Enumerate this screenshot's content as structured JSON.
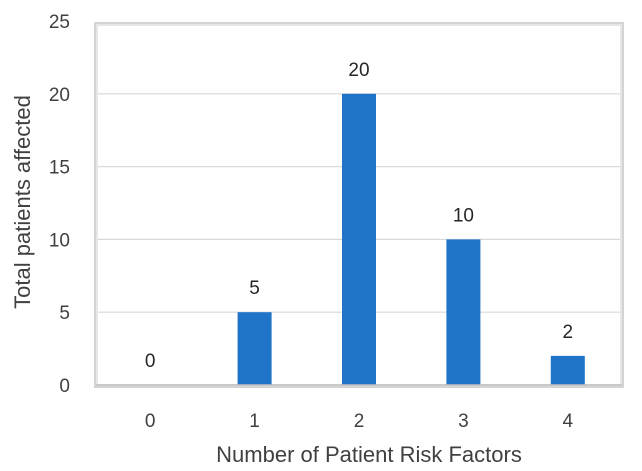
{
  "chart_data": {
    "type": "bar",
    "categories": [
      "0",
      "1",
      "2",
      "3",
      "4"
    ],
    "values": [
      0,
      5,
      20,
      10,
      2
    ],
    "data_labels": [
      "0",
      "5",
      "20",
      "10",
      "2"
    ],
    "xlabel": "Number of Patient Risk Factors",
    "ylabel": "Total patients affected",
    "ylim": [
      0,
      25
    ],
    "yticks": [
      "0",
      "5",
      "10",
      "15",
      "20",
      "25"
    ],
    "grid": true,
    "legend": "none",
    "bar_color": "#1f74c9"
  }
}
